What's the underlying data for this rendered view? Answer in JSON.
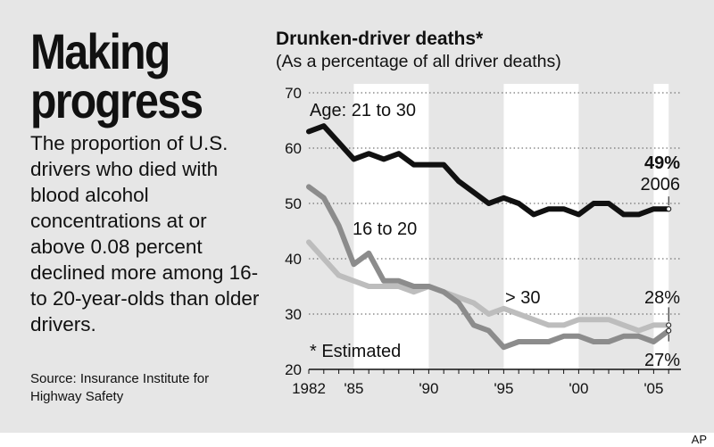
{
  "headline": [
    "Making",
    "progress"
  ],
  "description": "The proportion of U.S. drivers who died with blood alcohol concentrations at or above 0.08 percent declined more among 16- to 20-year-olds than older drivers.",
  "source": "Source: Insurance Institute for Highway Safety",
  "credit": "AP",
  "chart_data": {
    "type": "line",
    "title": "Drunken-driver deaths*",
    "subtitle": "(As a percentage of all driver deaths)",
    "footnote": "* Estimated",
    "x": [
      1982,
      1983,
      1984,
      1985,
      1986,
      1987,
      1988,
      1989,
      1990,
      1991,
      1992,
      1993,
      1994,
      1995,
      1996,
      1997,
      1998,
      1999,
      2000,
      2001,
      2002,
      2003,
      2004,
      2005,
      2006
    ],
    "xticks": [
      1982,
      1985,
      1990,
      1995,
      2000,
      2005
    ],
    "xtick_labels": [
      "1982",
      "'85",
      "'90",
      "'95",
      "'00",
      "'05"
    ],
    "xlim": [
      1982,
      2006.5
    ],
    "ylim": [
      20,
      70
    ],
    "yticks": [
      20,
      30,
      40,
      50,
      60,
      70
    ],
    "grid": "dotted horizontal",
    "shaded_bands": [
      [
        1985,
        1990
      ],
      [
        1995,
        2000
      ],
      [
        2005,
        2006
      ]
    ],
    "series": [
      {
        "name": "Age: 21 to 30",
        "color": "#111111",
        "values": [
          63,
          64,
          61,
          58,
          59,
          58,
          59,
          57,
          57,
          57,
          54,
          52,
          50,
          51,
          50,
          48,
          49,
          49,
          48,
          50,
          50,
          48,
          48,
          49,
          49
        ]
      },
      {
        "name": "16 to 20",
        "color": "#8c8c8c",
        "values": [
          53,
          51,
          46,
          39,
          41,
          36,
          36,
          35,
          35,
          34,
          32,
          28,
          27,
          24,
          25,
          25,
          25,
          26,
          26,
          25,
          25,
          26,
          26,
          25,
          27
        ]
      },
      {
        "name": "> 30",
        "color": "#bdbdbd",
        "values": [
          43,
          40,
          37,
          36,
          35,
          35,
          35,
          34,
          35,
          34,
          33,
          32,
          30,
          31,
          30,
          29,
          28,
          28,
          29,
          29,
          29,
          28,
          27,
          28,
          28
        ]
      }
    ],
    "end_labels": {
      "age_21_30": {
        "value": "49%",
        "year": "2006"
      },
      "age_16_20": "27%",
      "age_over_30": "28%"
    }
  }
}
